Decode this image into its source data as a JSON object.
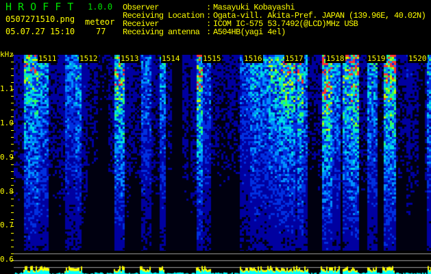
{
  "header": {
    "app_title": "H R O F F T",
    "version": "1.0.0",
    "filename": "0507271510.png",
    "datetime": "05.07.27 15:10",
    "meteor_label": "meteor",
    "meteor_count": "77"
  },
  "info": [
    {
      "label": "Observer",
      "value": "Masayuki Kobayashi"
    },
    {
      "label": "Receiving Location",
      "value": "Ogata-vill. Akita-Pref. JAPAN (139.96E, 40.02N)"
    },
    {
      "label": "Receiver",
      "value": "ICOM IC-575 53.7492(@LCD)MHz USB"
    },
    {
      "label": "Receiving antenna",
      "value": "A504HB(yagi 4el)"
    }
  ],
  "spectrogram": {
    "y_unit": "kHz",
    "y_ticks": [
      "1.1",
      "1.0",
      "0.9",
      "0.8",
      "0.7",
      "0.6"
    ],
    "time_labels": [
      "1511",
      "1512",
      "1513",
      "1514",
      "1515",
      "1516",
      "1517",
      "1518",
      "1519",
      "1520"
    ],
    "colors": {
      "text": "#ffff00",
      "title": "#00e000",
      "low": "#0000a0",
      "mid": "#00c0ff",
      "high": "#00ff40",
      "peak": "#ff2020",
      "bar": "#ffff00",
      "bar_base": "#00ffff"
    }
  }
}
